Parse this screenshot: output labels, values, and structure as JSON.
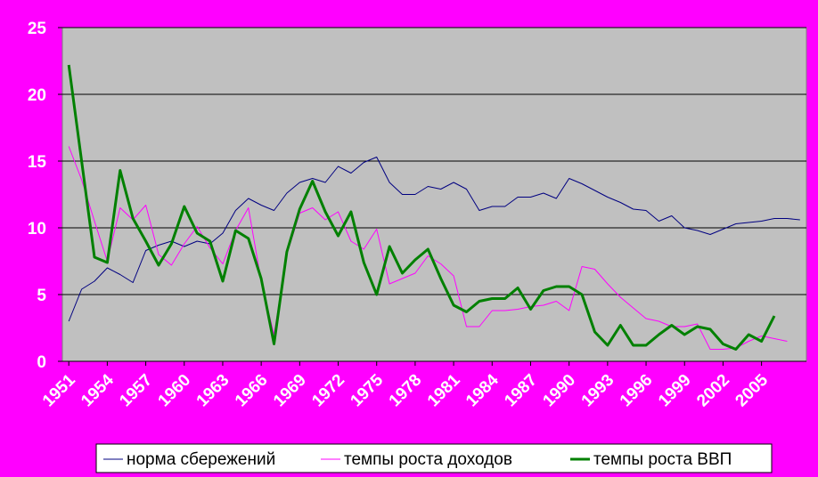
{
  "chart_data": {
    "type": "line",
    "x": [
      1951,
      1952,
      1953,
      1954,
      1955,
      1956,
      1957,
      1958,
      1959,
      1960,
      1961,
      1962,
      1963,
      1964,
      1965,
      1966,
      1967,
      1968,
      1969,
      1970,
      1971,
      1972,
      1973,
      1974,
      1975,
      1976,
      1977,
      1978,
      1979,
      1980,
      1981,
      1982,
      1983,
      1984,
      1985,
      1986,
      1987,
      1988,
      1989,
      1990,
      1991,
      1992,
      1993,
      1994,
      1995,
      1996,
      1997,
      1998,
      1999,
      2000,
      2001,
      2002,
      2003,
      2004,
      2005,
      2006,
      2007,
      2008
    ],
    "series": [
      {
        "name": "норма сбережений",
        "color": "#000080",
        "width": 1,
        "values": [
          3.0,
          5.4,
          6.0,
          7.0,
          6.5,
          5.9,
          8.3,
          8.7,
          9.0,
          8.6,
          9.0,
          8.8,
          9.6,
          11.3,
          12.2,
          11.7,
          11.3,
          12.6,
          13.4,
          13.7,
          13.4,
          14.6,
          14.1,
          14.9,
          15.3,
          13.4,
          12.5,
          12.5,
          13.1,
          12.9,
          13.4,
          12.9,
          11.3,
          11.6,
          11.6,
          12.3,
          12.3,
          12.6,
          12.2,
          13.7,
          13.3,
          12.8,
          12.3,
          11.9,
          11.4,
          11.3,
          10.5,
          10.9,
          10.0,
          9.8,
          9.5,
          9.9,
          10.3,
          10.4,
          10.5,
          10.7,
          10.7,
          10.6
        ]
      },
      {
        "name": "темпы роста доходов",
        "color": "#ff00ff",
        "width": 1,
        "values": [
          16.1,
          13.6,
          10.5,
          7.5,
          11.5,
          10.6,
          11.7,
          8.0,
          7.2,
          8.8,
          10.1,
          8.5,
          7.3,
          9.8,
          11.5,
          6.0,
          2.0,
          8.0,
          11.1,
          11.5,
          10.6,
          11.2,
          9.0,
          8.4,
          9.9,
          5.8,
          6.2,
          6.6,
          7.9,
          7.3,
          6.4,
          2.6,
          2.6,
          3.8,
          3.8,
          3.9,
          4.1,
          4.2,
          4.5,
          3.8,
          7.1,
          6.9,
          5.8,
          4.8,
          4.0,
          3.2,
          3.0,
          2.6,
          2.6,
          2.8,
          0.9,
          0.9,
          1.0,
          1.5,
          1.9,
          1.7,
          1.5,
          null
        ]
      },
      {
        "name": "темпы роста ВВП",
        "color": "#008000",
        "width": 3,
        "values": [
          22.2,
          15.0,
          7.8,
          7.4,
          14.3,
          10.7,
          9.0,
          7.2,
          8.8,
          11.6,
          9.6,
          9.0,
          6.0,
          9.8,
          9.2,
          6.2,
          1.3,
          8.2,
          11.4,
          13.5,
          11.2,
          9.4,
          11.2,
          7.4,
          5.0,
          8.6,
          6.6,
          7.6,
          8.4,
          6.2,
          4.2,
          3.7,
          4.5,
          4.7,
          4.7,
          5.5,
          3.9,
          5.3,
          5.6,
          5.6,
          5.0,
          2.2,
          1.2,
          2.7,
          1.2,
          1.2,
          2.0,
          2.7,
          2.0,
          2.6,
          2.4,
          1.3,
          0.9,
          2.0,
          1.5,
          3.4,
          null,
          null
        ]
      }
    ],
    "xlim": [
      1950.5,
      2008.5
    ],
    "xticks": [
      1951,
      1954,
      1957,
      1960,
      1963,
      1966,
      1969,
      1972,
      1975,
      1978,
      1981,
      1984,
      1987,
      1990,
      1993,
      1996,
      1999,
      2002,
      2005
    ],
    "ylim": [
      0,
      25
    ],
    "yticks": [
      0,
      5,
      10,
      15,
      20,
      25
    ],
    "grid": true,
    "legend": "bottom"
  }
}
